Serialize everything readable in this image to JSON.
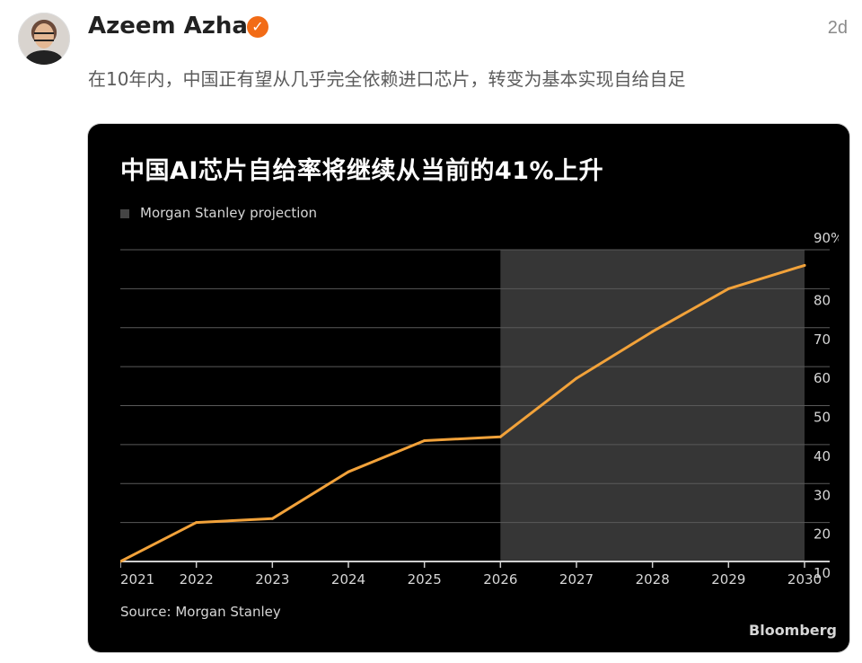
{
  "post": {
    "author": "Azeem Azhar",
    "time": "2d",
    "text": "在10年内，中国正有望从几乎完全依赖进口芯片，转变为基本实现自给自足"
  },
  "colors": {
    "line": "#f2a23a",
    "projection_shade": "#363636",
    "grid": "#5a5a5a",
    "verified": "#f26b16"
  },
  "icons": {
    "verified": "check-icon"
  },
  "chart_data": {
    "type": "line",
    "title": "中国AI芯片自给率将继续从当前的41%上升",
    "legend": [
      "Morgan Stanley projection"
    ],
    "source": "Source: Morgan Stanley",
    "brand": "Bloomberg",
    "x": [
      "2021",
      "2022",
      "2023",
      "2024",
      "2025",
      "2026",
      "2027",
      "2028",
      "2029",
      "2030"
    ],
    "series": [
      {
        "values": [
          10,
          20,
          21,
          33,
          41,
          42,
          57,
          69,
          80,
          86
        ]
      }
    ],
    "yticks": [
      "10",
      "20",
      "30",
      "40",
      "50",
      "60",
      "70",
      "80",
      "90%"
    ],
    "ylim": [
      10,
      90
    ],
    "projection_start": "2026",
    "projection_end": "2030",
    "grid": true,
    "legend_position": "top-left",
    "yaxis_position": "right"
  }
}
